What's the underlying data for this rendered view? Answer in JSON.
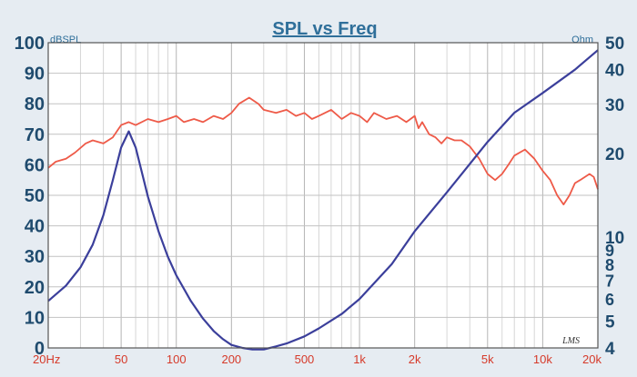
{
  "chart_data": {
    "type": "line",
    "title": "SPL vs Freq",
    "left_unit": "dBSPL",
    "right_unit": "Ohm",
    "watermark": "LMS",
    "x_scale": "log",
    "xlim": [
      20,
      20000
    ],
    "x_ticks": [
      {
        "value": 20,
        "label": "20Hz"
      },
      {
        "value": 50,
        "label": "50"
      },
      {
        "value": 100,
        "label": "100"
      },
      {
        "value": 200,
        "label": "200"
      },
      {
        "value": 500,
        "label": "500"
      },
      {
        "value": 1000,
        "label": "1k"
      },
      {
        "value": 2000,
        "label": "2k"
      },
      {
        "value": 5000,
        "label": "5k"
      },
      {
        "value": 10000,
        "label": "10k"
      },
      {
        "value": 20000,
        "label": "20k"
      }
    ],
    "y_left": {
      "lim": [
        0,
        100
      ],
      "ticks": [
        {
          "value": 0,
          "label": "0"
        },
        {
          "value": 10,
          "label": "10"
        },
        {
          "value": 20,
          "label": "20"
        },
        {
          "value": 30,
          "label": "30"
        },
        {
          "value": 40,
          "label": "40"
        },
        {
          "value": 50,
          "label": "50"
        },
        {
          "value": 60,
          "label": "60"
        },
        {
          "value": 70,
          "label": "70"
        },
        {
          "value": 80,
          "label": "80"
        },
        {
          "value": 90,
          "label": "90"
        },
        {
          "value": 100,
          "label": "100"
        }
      ]
    },
    "y_right": {
      "scale": "log",
      "lim": [
        4,
        50
      ],
      "ticks": [
        {
          "value": 4,
          "label": "4"
        },
        {
          "value": 5,
          "label": "5"
        },
        {
          "value": 6,
          "label": "6"
        },
        {
          "value": 7,
          "label": "7"
        },
        {
          "value": 8,
          "label": "8"
        },
        {
          "value": 9,
          "label": "9"
        },
        {
          "value": 10,
          "label": "10"
        },
        {
          "value": 20,
          "label": "20"
        },
        {
          "value": 30,
          "label": "30"
        },
        {
          "value": 40,
          "label": "40"
        },
        {
          "value": 50,
          "label": "50"
        }
      ]
    },
    "grid": true,
    "series": [
      {
        "color": "#ee5a48",
        "axis": "left",
        "x": [
          20,
          22,
          25,
          28,
          32,
          35,
          40,
          45,
          50,
          55,
          60,
          70,
          80,
          90,
          100,
          110,
          125,
          140,
          160,
          180,
          200,
          220,
          250,
          280,
          300,
          350,
          400,
          450,
          500,
          550,
          600,
          700,
          800,
          900,
          1000,
          1100,
          1200,
          1400,
          1600,
          1800,
          2000,
          2100,
          2200,
          2400,
          2600,
          2800,
          3000,
          3300,
          3600,
          4000,
          4500,
          5000,
          5500,
          6000,
          6500,
          7000,
          8000,
          9000,
          10000,
          11000,
          12000,
          13000,
          14000,
          15000,
          16000,
          18000,
          19000,
          20000
        ],
        "values": [
          59,
          61,
          62,
          64,
          67,
          68,
          67,
          69,
          73,
          74,
          73,
          75,
          74,
          75,
          76,
          74,
          75,
          74,
          76,
          75,
          77,
          80,
          82,
          80,
          78,
          77,
          78,
          76,
          77,
          75,
          76,
          78,
          75,
          77,
          76,
          74,
          77,
          75,
          76,
          74,
          76,
          72,
          74,
          70,
          69,
          67,
          69,
          68,
          68,
          66,
          62,
          57,
          55,
          57,
          60,
          63,
          65,
          62,
          58,
          55,
          50,
          47,
          50,
          54,
          55,
          57,
          56,
          52
        ]
      },
      {
        "color": "#3b3f9b",
        "axis": "right",
        "x": [
          20,
          25,
          30,
          35,
          40,
          45,
          50,
          55,
          60,
          65,
          70,
          80,
          90,
          100,
          120,
          140,
          160,
          180,
          200,
          230,
          260,
          300,
          350,
          400,
          500,
          600,
          800,
          1000,
          1500,
          2000,
          3000,
          5000,
          7000,
          10000,
          15000,
          20000
        ],
        "values": [
          5.9,
          6.7,
          7.8,
          9.4,
          12,
          16,
          21,
          24,
          21,
          17,
          14,
          10.5,
          8.5,
          7.3,
          5.9,
          5.1,
          4.6,
          4.3,
          4.1,
          4.0,
          3.95,
          3.95,
          4.05,
          4.15,
          4.4,
          4.7,
          5.3,
          6.0,
          8.0,
          10.5,
          14.5,
          22,
          28,
          33,
          40,
          47
        ]
      }
    ]
  }
}
